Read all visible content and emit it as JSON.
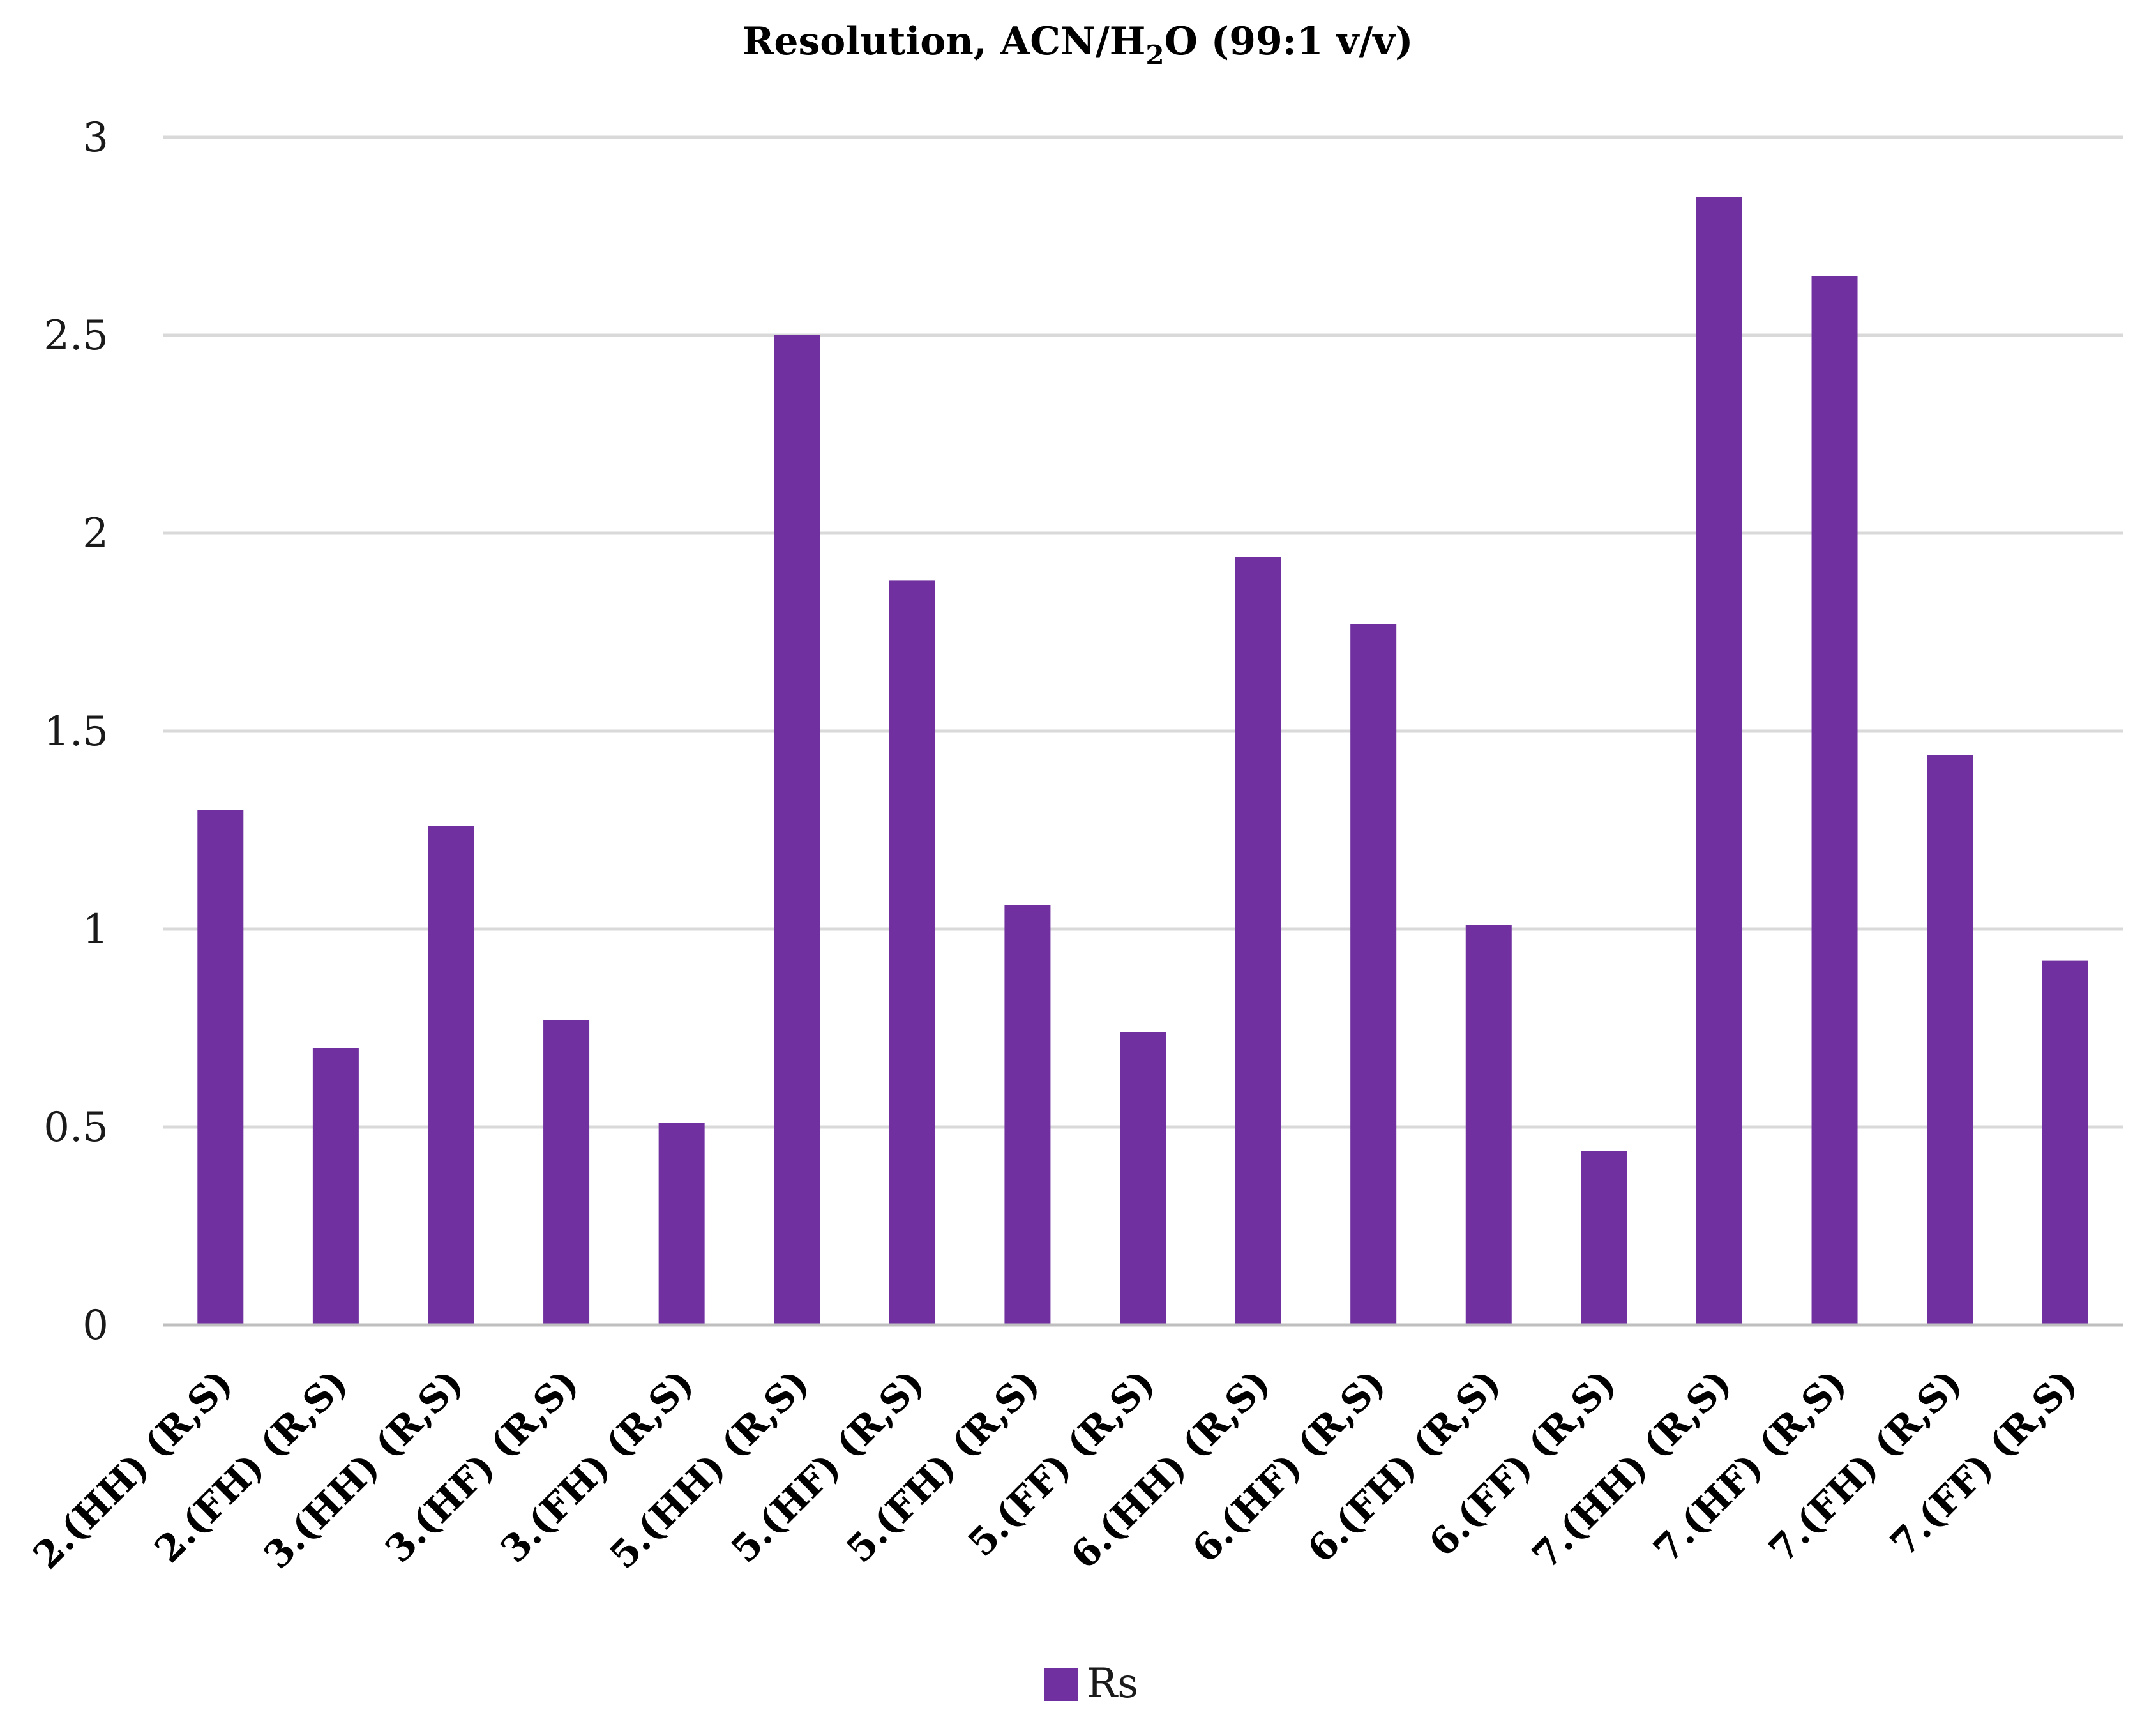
{
  "chart_data": {
    "type": "bar",
    "title_main": "Resolution, ACN/H",
    "title_sub": "2",
    "title_end": "O (99:1 v/v)",
    "categories": [
      "2.(HH) (R,S)",
      "2.(FH) (R,S)",
      "3.(HH) (R,S)",
      "3.(HF) (R,S)",
      "3.(FH) (R,S)",
      "5.(HH) (R,S)",
      "5.(HF) (R,S)",
      "5.(FH) (R,S)",
      "5.(FF) (R,S)",
      "6.(HH) (R,S)",
      "6.(HF) (R,S)",
      "6.(FH) (R,S)",
      "6.(FF) (R,S)",
      "7.(HH) (R,S)",
      "7.(HF) (R,S)",
      "7.(FH) (R,S)",
      "7.(FF) (R,S)"
    ],
    "series": [
      {
        "name": "Rs",
        "color": "#7030a0",
        "values": [
          1.3,
          0.7,
          1.26,
          0.77,
          0.51,
          2.5,
          1.88,
          1.06,
          0.74,
          1.94,
          1.77,
          1.01,
          0.44,
          2.85,
          2.65,
          1.44,
          0.92
        ]
      }
    ],
    "ylim": [
      0,
      3
    ],
    "yticks": [
      "0",
      "0.5",
      "1",
      "1.5",
      "2",
      "2.5",
      "3"
    ],
    "ytick_values": [
      0,
      0.5,
      1,
      1.5,
      2,
      2.5,
      3
    ],
    "grid": true,
    "legend_position": "bottom"
  }
}
